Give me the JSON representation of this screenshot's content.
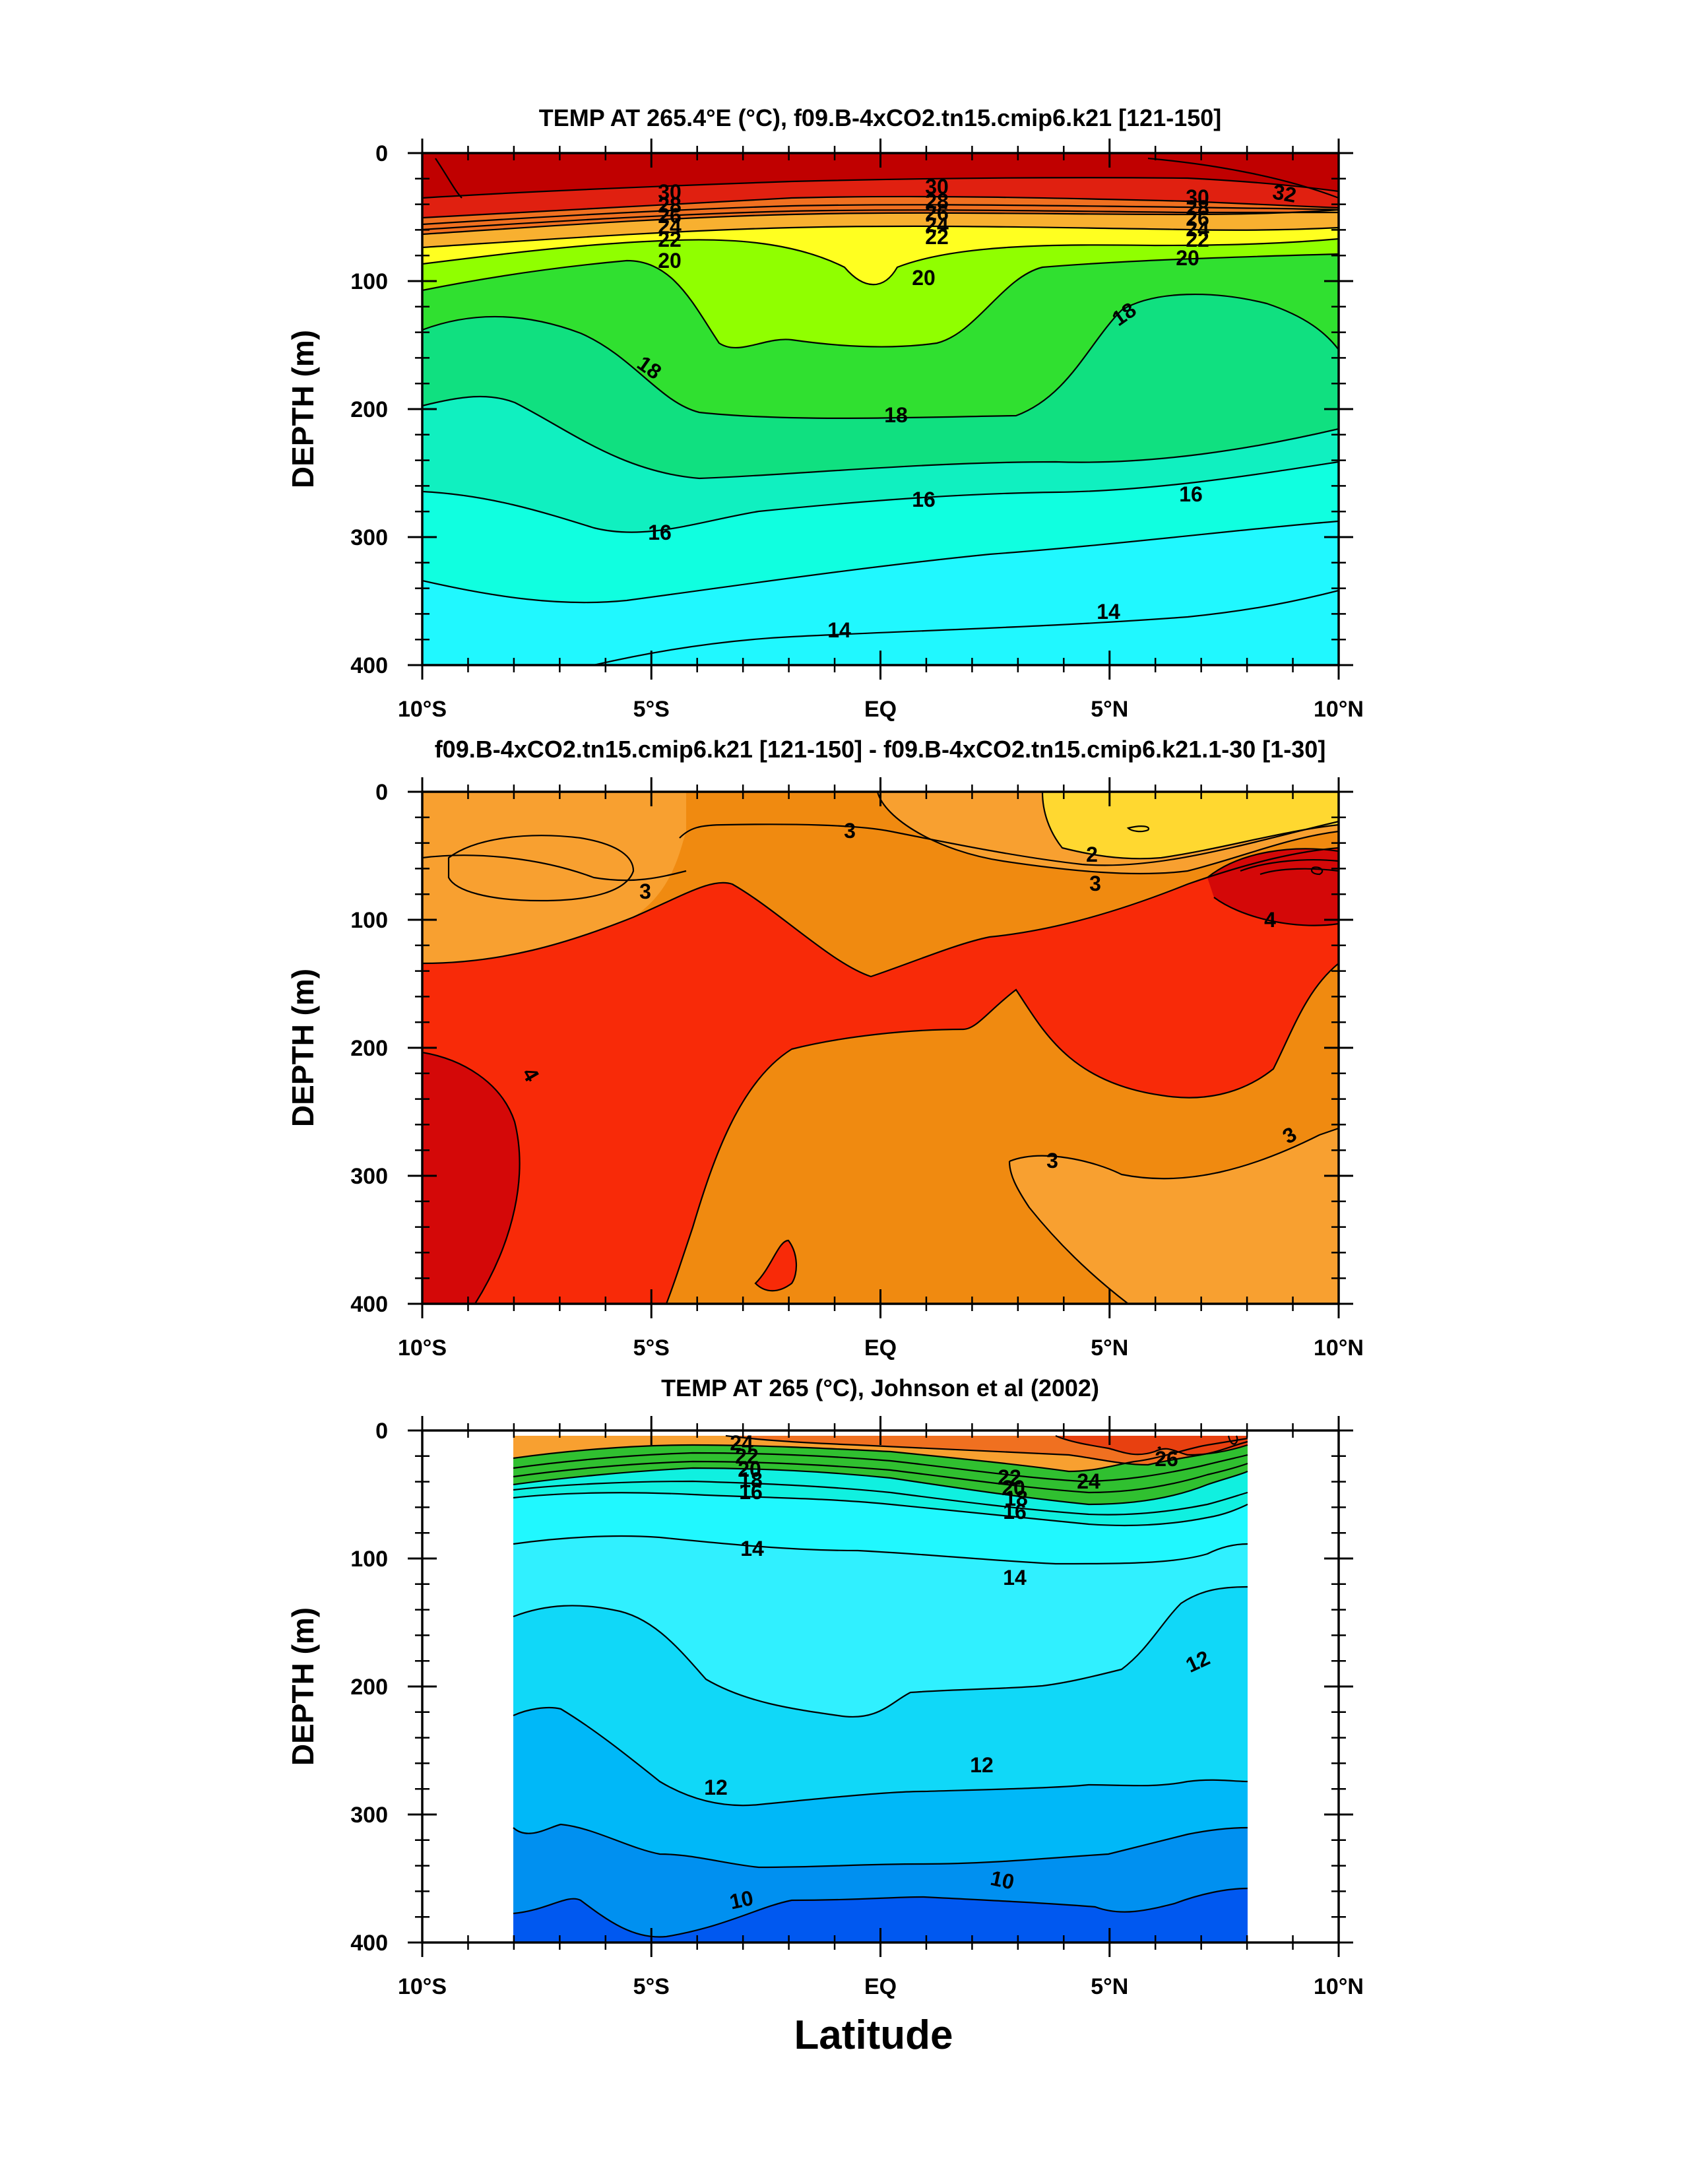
{
  "chart_data": [
    {
      "type": "contour",
      "title": "TEMP AT 265.4°E (°C), f09.B-4xCO2.tn15.cmip6.k21 [121-150]",
      "xlabel": "",
      "ylabel": "DEPTH (m)",
      "xlim": [
        -10,
        10
      ],
      "ylim": [
        400,
        0
      ],
      "yticks": [
        "0",
        "100",
        "200",
        "300",
        "400"
      ],
      "xticks": [
        "10°S",
        "5°S",
        "EQ",
        "5°N",
        "10°N"
      ],
      "contour_labels": [
        "30",
        "28",
        "26",
        "24",
        "22",
        "20",
        "30",
        "28",
        "26",
        "24",
        "22",
        "20",
        "30",
        "32",
        "28",
        "26",
        "24",
        "22",
        "20",
        "18",
        "18",
        "18",
        "16",
        "16",
        "16",
        "14",
        "14"
      ],
      "bands": [
        {
          "level": ">30",
          "color": "#c00000"
        },
        {
          "level": "28-30",
          "color": "#e02010"
        },
        {
          "level": "24-28",
          "color": "#f07020"
        },
        {
          "level": "22-24",
          "color": "#f8b030"
        },
        {
          "level": "20-22",
          "color": "#ffff20"
        },
        {
          "level": "19-20",
          "color": "#90ff00"
        },
        {
          "level": "18-19",
          "color": "#30e030"
        },
        {
          "level": "17-18",
          "color": "#10e080"
        },
        {
          "level": "16-17",
          "color": "#10f0c0"
        },
        {
          "level": "15-16",
          "color": "#10ffe0"
        },
        {
          "level": "14-15",
          "color": "#20f8ff"
        }
      ]
    },
    {
      "type": "contour",
      "title": "f09.B-4xCO2.tn15.cmip6.k21 [121-150] - f09.B-4xCO2.tn15.cmip6.k21.1-30 [1-30]",
      "xlabel": "",
      "ylabel": "DEPTH (m)",
      "xlim": [
        -10,
        10
      ],
      "ylim": [
        400,
        0
      ],
      "yticks": [
        "0",
        "100",
        "200",
        "300",
        "400"
      ],
      "xticks": [
        "10°S",
        "5°S",
        "EQ",
        "5°N",
        "10°N"
      ],
      "contour_labels": [
        "3",
        "3",
        "2",
        "3",
        "4",
        "4",
        "3",
        "3"
      ],
      "bands": [
        {
          "level": "2-2.5",
          "color": "#ffd830"
        },
        {
          "level": "2.5-3",
          "color": "#f8a030"
        },
        {
          "level": "3-3.5",
          "color": "#f08a10"
        },
        {
          "level": "3.5-4",
          "color": "#f82a08"
        },
        {
          "level": ">4",
          "color": "#d40808"
        }
      ]
    },
    {
      "type": "contour",
      "title": "TEMP AT 265 (°C), Johnson et al (2002)",
      "xlabel": "Latitude",
      "ylabel": "DEPTH (m)",
      "xlim": [
        -10,
        10
      ],
      "ylim": [
        400,
        0
      ],
      "data_lat_range": [
        -8,
        8
      ],
      "yticks": [
        "0",
        "100",
        "200",
        "300",
        "400"
      ],
      "xticks": [
        "10°S",
        "5°S",
        "EQ",
        "5°N",
        "10°N"
      ],
      "contour_labels": [
        "24",
        "22",
        "20",
        "18",
        "16",
        "22",
        "20",
        "18",
        "16",
        "24",
        "26",
        "14",
        "14",
        "12",
        "12",
        "12",
        "10",
        "10"
      ],
      "bands": [
        {
          "level": ">24",
          "color": "#f07020"
        },
        {
          "level": "20-24",
          "color": "#f8a030"
        },
        {
          "level": "16-20",
          "color": "#30c030"
        },
        {
          "level": "15-16",
          "color": "#10f0e0"
        },
        {
          "level": "14-15",
          "color": "#20f8ff"
        },
        {
          "level": "13-14",
          "color": "#30f0ff"
        },
        {
          "level": "12-13",
          "color": "#10d8f8"
        },
        {
          "level": "11-12",
          "color": "#00b8f8"
        },
        {
          "level": "10-11",
          "color": "#0090f0"
        },
        {
          "level": "<10",
          "color": "#0058f0"
        }
      ]
    }
  ]
}
